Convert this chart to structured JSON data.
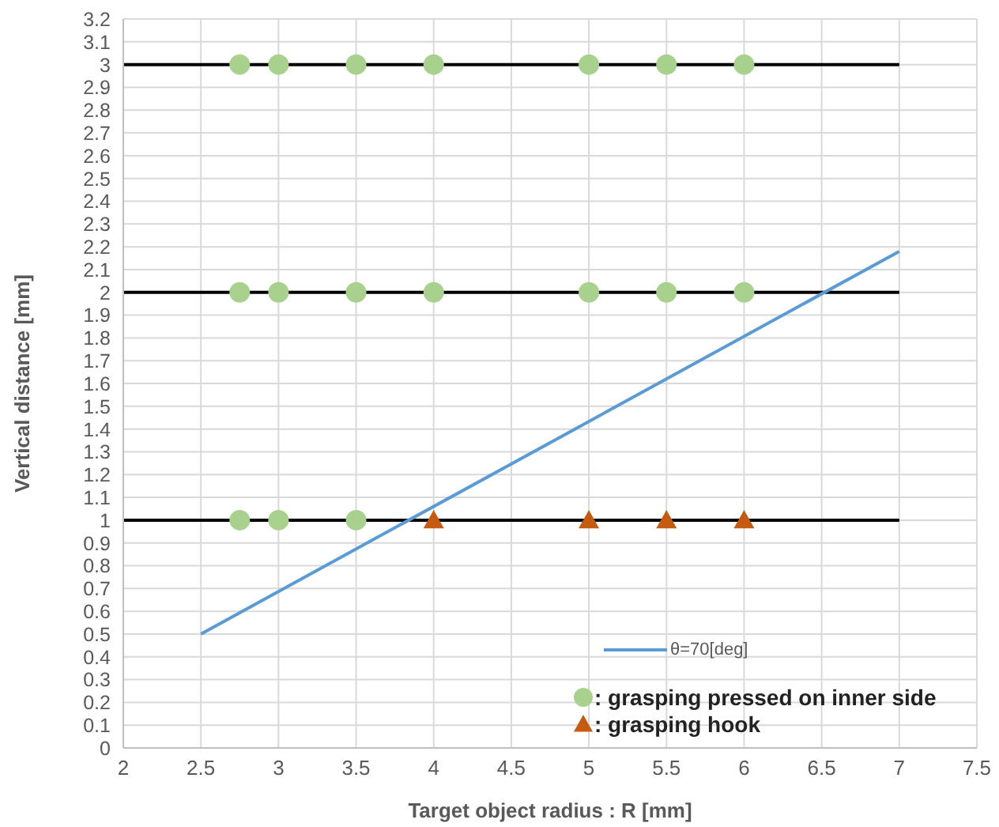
{
  "chart_data": {
    "type": "scatter",
    "xlabel": "Target object radius : R [mm]",
    "ylabel": "Vertical distance [mm]",
    "xlim": [
      2,
      7.5
    ],
    "xticks": [
      2,
      2.5,
      3,
      3.5,
      4,
      4.5,
      5,
      5.5,
      6,
      6.5,
      7,
      7.5
    ],
    "ylim": [
      0,
      3.2
    ],
    "yticks": [
      0,
      0.1,
      0.2,
      0.3,
      0.4,
      0.5,
      0.6,
      0.7,
      0.8,
      0.9,
      1,
      1.1,
      1.2,
      1.3,
      1.4,
      1.5,
      1.6,
      1.7,
      1.8,
      1.9,
      2,
      2.1,
      2.2,
      2.3,
      2.4,
      2.5,
      2.6,
      2.7,
      2.8,
      2.9,
      3,
      3.1,
      3.2
    ],
    "grid": true,
    "legend": "bottom right",
    "series": [
      {
        "type": "line",
        "color": "#000000",
        "x": [
          2,
          7
        ],
        "values": [
          3,
          3
        ],
        "marker": "none"
      },
      {
        "type": "line",
        "color": "#000000",
        "x": [
          2,
          7
        ],
        "values": [
          2,
          2
        ],
        "marker": "none"
      },
      {
        "type": "line",
        "color": "#000000",
        "x": [
          2,
          7
        ],
        "values": [
          1,
          1
        ],
        "marker": "none"
      },
      {
        "type": "line",
        "name": "θ=70[deg]",
        "color": "#5b9bd5",
        "x": [
          2.5,
          7
        ],
        "values": [
          0.5,
          2.18
        ],
        "marker": "none"
      },
      {
        "name": ": grasping pressed on inner side",
        "color": "#a9d18e",
        "marker": "circle",
        "x": [
          2.75,
          3,
          3.5,
          4,
          5,
          5.5,
          6,
          2.75,
          3,
          3.5,
          4,
          5,
          5.5,
          6,
          2.75,
          3,
          3.5
        ],
        "values": [
          3,
          3,
          3,
          3,
          3,
          3,
          3,
          2,
          2,
          2,
          2,
          2,
          2,
          2,
          1,
          1,
          1
        ]
      },
      {
        "name": ": grasping hook",
        "color": "#c55a11",
        "marker": "triangle",
        "x": [
          4,
          5,
          5.5,
          6
        ],
        "values": [
          1,
          1,
          1,
          1
        ]
      }
    ]
  }
}
